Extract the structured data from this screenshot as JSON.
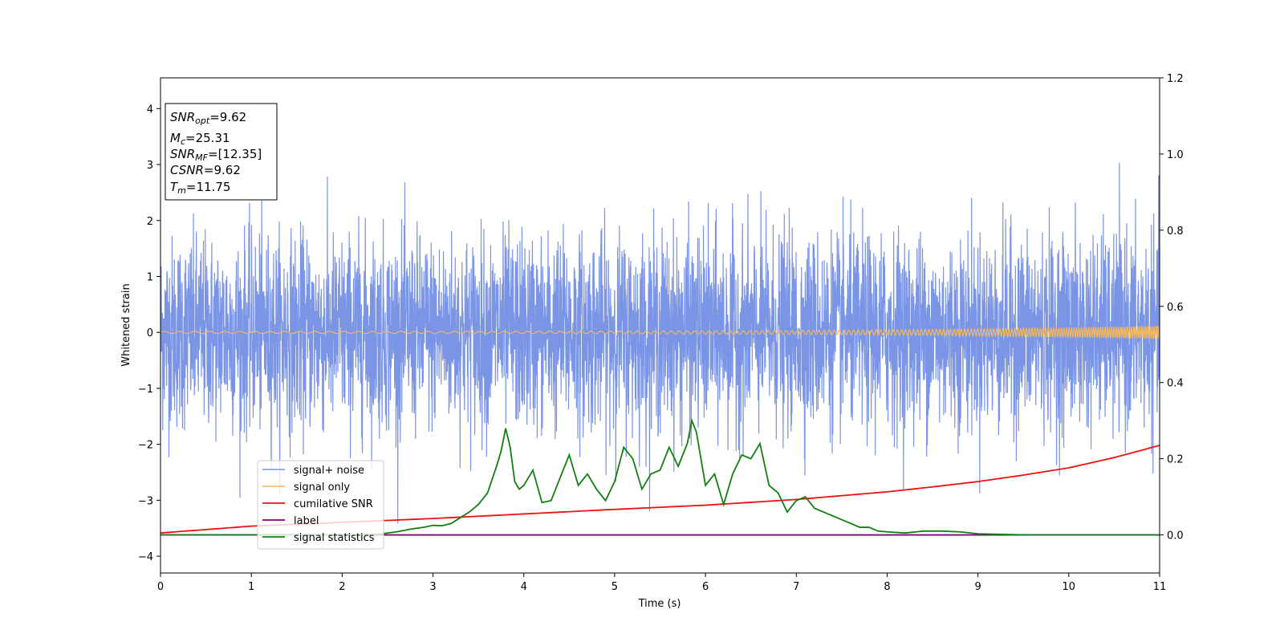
{
  "chart_data": {
    "type": "line",
    "title": "",
    "xlabel": "Time (s)",
    "ylabel": "Whitened strain",
    "xlim": [
      0,
      11
    ],
    "ylim": [
      -4.3,
      4.55
    ],
    "y2lim": [
      -0.1,
      1.2
    ],
    "xticks": [
      "0",
      "1",
      "2",
      "3",
      "4",
      "5",
      "6",
      "7",
      "8",
      "9",
      "10",
      "11"
    ],
    "yticks": [
      "−4",
      "−3",
      "−2",
      "−1",
      "0",
      "1",
      "2",
      "3",
      "4"
    ],
    "y2ticks": [
      "0.0",
      "0.2",
      "0.4",
      "0.6",
      "0.8",
      "1.0",
      "1.2"
    ],
    "grid": false,
    "legend_position": "lower-left",
    "info_box": {
      "snr_opt": {
        "base": "SNR",
        "sub": "opt",
        "value": "=9.62"
      },
      "mc": {
        "base": "M",
        "sub": "c",
        "value": "=25.31"
      },
      "snr_mf": {
        "base": "SNR",
        "sub": "MF",
        "value": "=[12.35]"
      },
      "csnr": {
        "base": "CSNR",
        "sub": "",
        "value": "=9.62"
      },
      "tm": {
        "base": "T",
        "sub": "m",
        "value": "=11.75"
      }
    },
    "series": [
      {
        "name": "signal+ noise",
        "color": "#7a94e6",
        "axis": "left",
        "description_values": {
          "mean": 0,
          "std": 0.85,
          "min": -3.55,
          "max": 3.5
        }
      },
      {
        "name": "signal only",
        "color": "#f5b85a",
        "axis": "left",
        "amplitude_start": 0.02,
        "amplitude_end": 0.12
      },
      {
        "name": "cumilative SNR",
        "color": "#ee1111",
        "axis": "right",
        "x": [
          0,
          1,
          2,
          3,
          4,
          5,
          6,
          7,
          8,
          8.5,
          9,
          9.5,
          10,
          10.5,
          11
        ],
        "y": [
          0.005,
          0.023,
          0.033,
          0.043,
          0.055,
          0.067,
          0.078,
          0.093,
          0.113,
          0.126,
          0.14,
          0.157,
          0.176,
          0.203,
          0.235
        ]
      },
      {
        "name": "label",
        "color": "#800080",
        "axis": "right",
        "x": [
          0,
          11
        ],
        "y": [
          0,
          0
        ]
      },
      {
        "name": "signal statistics",
        "color": "#108010",
        "axis": "right",
        "x": [
          0,
          1,
          2,
          2.4,
          2.6,
          2.75,
          2.9,
          3.0,
          3.1,
          3.2,
          3.3,
          3.4,
          3.5,
          3.6,
          3.7,
          3.75,
          3.8,
          3.85,
          3.9,
          3.95,
          4.0,
          4.1,
          4.2,
          4.3,
          4.4,
          4.5,
          4.6,
          4.7,
          4.8,
          4.9,
          5.0,
          5.1,
          5.2,
          5.3,
          5.4,
          5.5,
          5.6,
          5.7,
          5.8,
          5.85,
          5.9,
          6.0,
          6.1,
          6.2,
          6.3,
          6.4,
          6.5,
          6.6,
          6.7,
          6.8,
          6.9,
          7.0,
          7.1,
          7.2,
          7.3,
          7.4,
          7.5,
          7.6,
          7.7,
          7.8,
          7.9,
          8.0,
          8.2,
          8.4,
          8.6,
          8.8,
          9.0,
          9.5,
          10,
          11
        ],
        "y": [
          0,
          0,
          0,
          0.002,
          0.008,
          0.015,
          0.02,
          0.025,
          0.024,
          0.03,
          0.045,
          0.06,
          0.08,
          0.11,
          0.18,
          0.22,
          0.28,
          0.23,
          0.14,
          0.12,
          0.13,
          0.17,
          0.085,
          0.09,
          0.15,
          0.21,
          0.13,
          0.16,
          0.12,
          0.09,
          0.14,
          0.23,
          0.2,
          0.12,
          0.16,
          0.17,
          0.23,
          0.18,
          0.24,
          0.3,
          0.27,
          0.13,
          0.16,
          0.08,
          0.16,
          0.21,
          0.2,
          0.24,
          0.13,
          0.11,
          0.06,
          0.09,
          0.1,
          0.07,
          0.06,
          0.05,
          0.04,
          0.03,
          0.02,
          0.02,
          0.01,
          0.008,
          0.005,
          0.01,
          0.01,
          0.008,
          0.003,
          0,
          0,
          0
        ]
      }
    ]
  }
}
